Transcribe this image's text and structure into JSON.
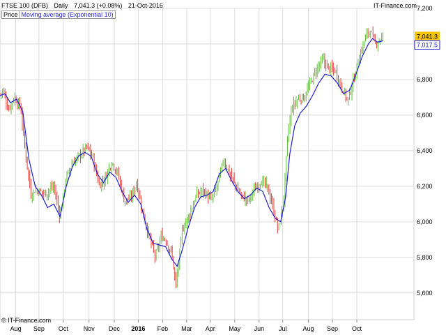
{
  "header": {
    "instrument": "FTSE 100 (DFB)",
    "period": "Daily",
    "quote": "7,041.3 (+0.08%)",
    "date": "21-Oct-2016",
    "site": "IT-Finance.com"
  },
  "legend": {
    "price_label": "Price",
    "ma_label": "Moving average (Exponential 10)"
  },
  "footer": {
    "copyright": "© IT-Finance.com"
  },
  "colors": {
    "up": "#5fbf3b",
    "down": "#e0403a",
    "ma": "#1f1fd6",
    "grid": "#dcdcdc",
    "last_price_bg": "#f5c400",
    "ma_label_bg": "#ffffff"
  },
  "chart_data": {
    "type": "line",
    "title": "FTSE 100 (DFB) Daily",
    "ylim": [
      5450,
      7200
    ],
    "y_ticks": [
      5600,
      5800,
      6000,
      6200,
      6400,
      6600,
      6800,
      7000,
      7200
    ],
    "y_tick_labels": [
      "5,600",
      "5,800",
      "6,000",
      "6,200",
      "6,400",
      "6,600",
      "6,800",
      "7,000",
      "7,200"
    ],
    "x_ticks": [
      {
        "label": "Aug",
        "t": 0.038
      },
      {
        "label": "Sep",
        "t": 0.094
      },
      {
        "label": "Oct",
        "t": 0.153
      },
      {
        "label": "Nov",
        "t": 0.215
      },
      {
        "label": "Dec",
        "t": 0.276
      },
      {
        "label": "2016",
        "t": 0.334,
        "bold": true
      },
      {
        "label": "Feb",
        "t": 0.393
      },
      {
        "label": "Mar",
        "t": 0.451
      },
      {
        "label": "Apr",
        "t": 0.508
      },
      {
        "label": "May",
        "t": 0.567
      },
      {
        "label": "Jun",
        "t": 0.626
      },
      {
        "label": "Jul",
        "t": 0.683
      },
      {
        "label": "Aug",
        "t": 0.745
      },
      {
        "label": "Sep",
        "t": 0.803
      },
      {
        "label": "Oct",
        "t": 0.862
      }
    ],
    "price_keypoints": [
      [
        0.0,
        6720
      ],
      [
        0.008,
        6740
      ],
      [
        0.02,
        6630
      ],
      [
        0.035,
        6700
      ],
      [
        0.05,
        6640
      ],
      [
        0.06,
        6420
      ],
      [
        0.075,
        6150
      ],
      [
        0.085,
        6180
      ],
      [
        0.11,
        6160
      ],
      [
        0.13,
        6200
      ],
      [
        0.145,
        6030
      ],
      [
        0.16,
        6250
      ],
      [
        0.175,
        6330
      ],
      [
        0.195,
        6380
      ],
      [
        0.21,
        6420
      ],
      [
        0.225,
        6360
      ],
      [
        0.24,
        6200
      ],
      [
        0.255,
        6250
      ],
      [
        0.27,
        6340
      ],
      [
        0.285,
        6270
      ],
      [
        0.3,
        6120
      ],
      [
        0.315,
        6130
      ],
      [
        0.33,
        6220
      ],
      [
        0.345,
        6050
      ],
      [
        0.36,
        5920
      ],
      [
        0.375,
        5800
      ],
      [
        0.39,
        5920
      ],
      [
        0.4,
        5900
      ],
      [
        0.415,
        5820
      ],
      [
        0.425,
        5640
      ],
      [
        0.44,
        5950
      ],
      [
        0.455,
        6030
      ],
      [
        0.475,
        6150
      ],
      [
        0.49,
        6180
      ],
      [
        0.51,
        6120
      ],
      [
        0.525,
        6200
      ],
      [
        0.54,
        6350
      ],
      [
        0.555,
        6270
      ],
      [
        0.57,
        6200
      ],
      [
        0.585,
        6140
      ],
      [
        0.6,
        6120
      ],
      [
        0.615,
        6180
      ],
      [
        0.63,
        6230
      ],
      [
        0.645,
        6200
      ],
      [
        0.66,
        6080
      ],
      [
        0.672,
        5950
      ],
      [
        0.685,
        6110
      ],
      [
        0.695,
        6480
      ],
      [
        0.705,
        6640
      ],
      [
        0.72,
        6690
      ],
      [
        0.735,
        6700
      ],
      [
        0.75,
        6780
      ],
      [
        0.765,
        6860
      ],
      [
        0.78,
        6910
      ],
      [
        0.795,
        6860
      ],
      [
        0.81,
        6850
      ],
      [
        0.825,
        6760
      ],
      [
        0.84,
        6680
      ],
      [
        0.855,
        6800
      ],
      [
        0.865,
        6900
      ],
      [
        0.875,
        6980
      ],
      [
        0.885,
        7050
      ],
      [
        0.895,
        7080
      ],
      [
        0.905,
        7000
      ],
      [
        0.915,
        7020
      ],
      [
        0.925,
        7041.3
      ]
    ],
    "ma_keypoints": [
      [
        0.0,
        6710
      ],
      [
        0.012,
        6720
      ],
      [
        0.025,
        6670
      ],
      [
        0.04,
        6690
      ],
      [
        0.055,
        6620
      ],
      [
        0.07,
        6350
      ],
      [
        0.085,
        6200
      ],
      [
        0.1,
        6150
      ],
      [
        0.115,
        6080
      ],
      [
        0.13,
        6100
      ],
      [
        0.145,
        6030
      ],
      [
        0.16,
        6200
      ],
      [
        0.175,
        6310
      ],
      [
        0.19,
        6370
      ],
      [
        0.205,
        6390
      ],
      [
        0.22,
        6370
      ],
      [
        0.235,
        6270
      ],
      [
        0.25,
        6220
      ],
      [
        0.265,
        6280
      ],
      [
        0.28,
        6250
      ],
      [
        0.295,
        6170
      ],
      [
        0.31,
        6110
      ],
      [
        0.325,
        6150
      ],
      [
        0.34,
        6100
      ],
      [
        0.355,
        5960
      ],
      [
        0.37,
        5880
      ],
      [
        0.385,
        5870
      ],
      [
        0.4,
        5860
      ],
      [
        0.415,
        5790
      ],
      [
        0.428,
        5750
      ],
      [
        0.44,
        5840
      ],
      [
        0.455,
        5970
      ],
      [
        0.47,
        6080
      ],
      [
        0.485,
        6140
      ],
      [
        0.5,
        6150
      ],
      [
        0.515,
        6170
      ],
      [
        0.53,
        6270
      ],
      [
        0.545,
        6300
      ],
      [
        0.56,
        6230
      ],
      [
        0.575,
        6170
      ],
      [
        0.59,
        6130
      ],
      [
        0.605,
        6150
      ],
      [
        0.62,
        6190
      ],
      [
        0.635,
        6170
      ],
      [
        0.65,
        6080
      ],
      [
        0.665,
        6020
      ],
      [
        0.678,
        6000
      ],
      [
        0.69,
        6140
      ],
      [
        0.7,
        6380
      ],
      [
        0.712,
        6540
      ],
      [
        0.725,
        6610
      ],
      [
        0.74,
        6650
      ],
      [
        0.755,
        6710
      ],
      [
        0.77,
        6780
      ],
      [
        0.785,
        6830
      ],
      [
        0.8,
        6820
      ],
      [
        0.815,
        6780
      ],
      [
        0.83,
        6720
      ],
      [
        0.845,
        6740
      ],
      [
        0.86,
        6830
      ],
      [
        0.875,
        6930
      ],
      [
        0.89,
        7000
      ],
      [
        0.9,
        7030
      ],
      [
        0.912,
        7010
      ],
      [
        0.925,
        7017.5
      ]
    ],
    "last_price": 7041.3,
    "last_price_label": "7,041.3",
    "last_ma": 7017.5,
    "last_ma_label": "7,017.5",
    "grid": true
  }
}
